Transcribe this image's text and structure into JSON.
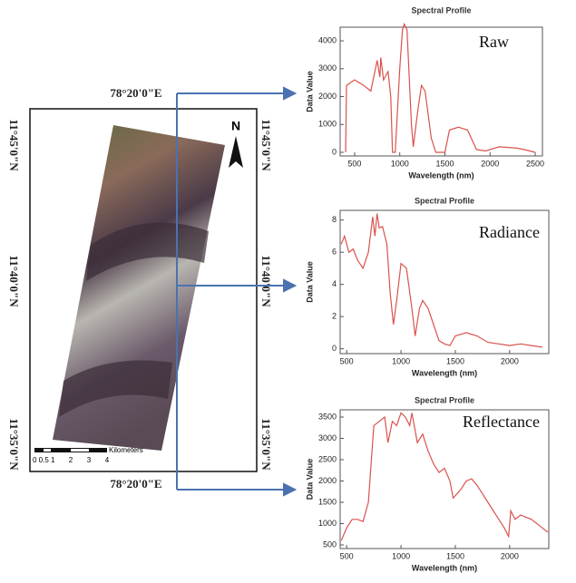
{
  "map": {
    "top_label": "78°20'0\"E",
    "bottom_label": "78°20'0\"E",
    "left_labels": [
      "11°45'0\"N",
      "11°40'0\"N",
      "11°35'0\"N"
    ],
    "right_labels": [
      "11°45'0\"N",
      "11°40'0\"N",
      "11°35'0\"N"
    ],
    "north": "N",
    "scale_unit": "Kilometers",
    "scale_labels": [
      "0 0.5 1",
      "2",
      "3",
      "4"
    ]
  },
  "chart_data": [
    {
      "type": "line",
      "title": "Spectral Profile",
      "annotation": "Raw",
      "x_label": "Wavelength (nm)",
      "y_label": "Data Value",
      "color": "#d9534f",
      "x": [
        400,
        410,
        500,
        600,
        680,
        750,
        780,
        790,
        820,
        870,
        900,
        920,
        950,
        1000,
        1030,
        1050,
        1080,
        1130,
        1150,
        1200,
        1240,
        1280,
        1350,
        1400,
        1500,
        1550,
        1650,
        1750,
        1850,
        1950,
        2100,
        2300,
        2400,
        2500
      ],
      "values": [
        0,
        2400,
        2600,
        2400,
        2200,
        3300,
        2700,
        3400,
        2600,
        2900,
        2000,
        0,
        0,
        3000,
        4400,
        4600,
        4400,
        1000,
        200,
        1500,
        2400,
        2200,
        500,
        0,
        0,
        800,
        900,
        800,
        100,
        50,
        200,
        150,
        80,
        0
      ],
      "xlim": [
        340,
        2580
      ],
      "ylim": [
        -130,
        4490
      ],
      "xticks": [
        500,
        1000,
        1500,
        2000,
        2500
      ],
      "yticks": [
        0,
        1000,
        2000,
        3000,
        4000
      ]
    },
    {
      "type": "line",
      "title": "Spectral Profile",
      "annotation": "Radiance",
      "x_label": "Wavelength (nm)",
      "y_label": "Data Value",
      "color": "#d9534f",
      "x": [
        450,
        480,
        520,
        560,
        600,
        650,
        700,
        740,
        760,
        780,
        800,
        830,
        870,
        900,
        930,
        960,
        1000,
        1050,
        1100,
        1130,
        1170,
        1200,
        1250,
        1300,
        1350,
        1400,
        1450,
        1500,
        1600,
        1700,
        1800,
        1900,
        2000,
        2100,
        2200,
        2300
      ],
      "values": [
        6.5,
        7.0,
        6.0,
        6.2,
        5.5,
        5.0,
        6.0,
        8.2,
        7.0,
        8.4,
        7.5,
        7.6,
        6.5,
        3.5,
        1.5,
        3.0,
        5.3,
        5.0,
        2.5,
        0.8,
        2.5,
        3.0,
        2.5,
        1.5,
        0.5,
        0.3,
        0.2,
        0.8,
        1.0,
        0.8,
        0.4,
        0.3,
        0.2,
        0.3,
        0.2,
        0.1
      ],
      "xlim": [
        440,
        2360
      ],
      "ylim": [
        -0.3,
        8.6
      ],
      "xticks": [
        500,
        1000,
        1500,
        2000
      ],
      "yticks": [
        0,
        2,
        4,
        6,
        8
      ]
    },
    {
      "type": "line",
      "title": "Spectral Profile",
      "annotation": "Reflectance",
      "x_label": "Wavelength (nm)",
      "y_label": "Data Value",
      "color": "#d9534f",
      "x": [
        450,
        500,
        550,
        600,
        650,
        700,
        750,
        800,
        850,
        880,
        920,
        960,
        1000,
        1040,
        1080,
        1100,
        1150,
        1200,
        1250,
        1300,
        1350,
        1400,
        1450,
        1480,
        1550,
        1600,
        1650,
        1700,
        1800,
        1900,
        1950,
        1990,
        2010,
        2050,
        2100,
        2200,
        2300,
        2350
      ],
      "values": [
        600,
        900,
        1100,
        1100,
        1050,
        1500,
        3300,
        3400,
        3500,
        2900,
        3400,
        3300,
        3600,
        3500,
        3300,
        3600,
        2900,
        3100,
        2700,
        2400,
        2200,
        2300,
        2000,
        1600,
        1800,
        2000,
        2050,
        1900,
        1500,
        1100,
        900,
        700,
        1300,
        1100,
        1200,
        1100,
        900,
        800
      ],
      "xlim": [
        440,
        2360
      ],
      "ylim": [
        415,
        3670
      ],
      "xticks": [
        500,
        1000,
        1500,
        2000
      ],
      "yticks": [
        500,
        1000,
        1500,
        2000,
        2500,
        3000,
        3500
      ]
    }
  ]
}
